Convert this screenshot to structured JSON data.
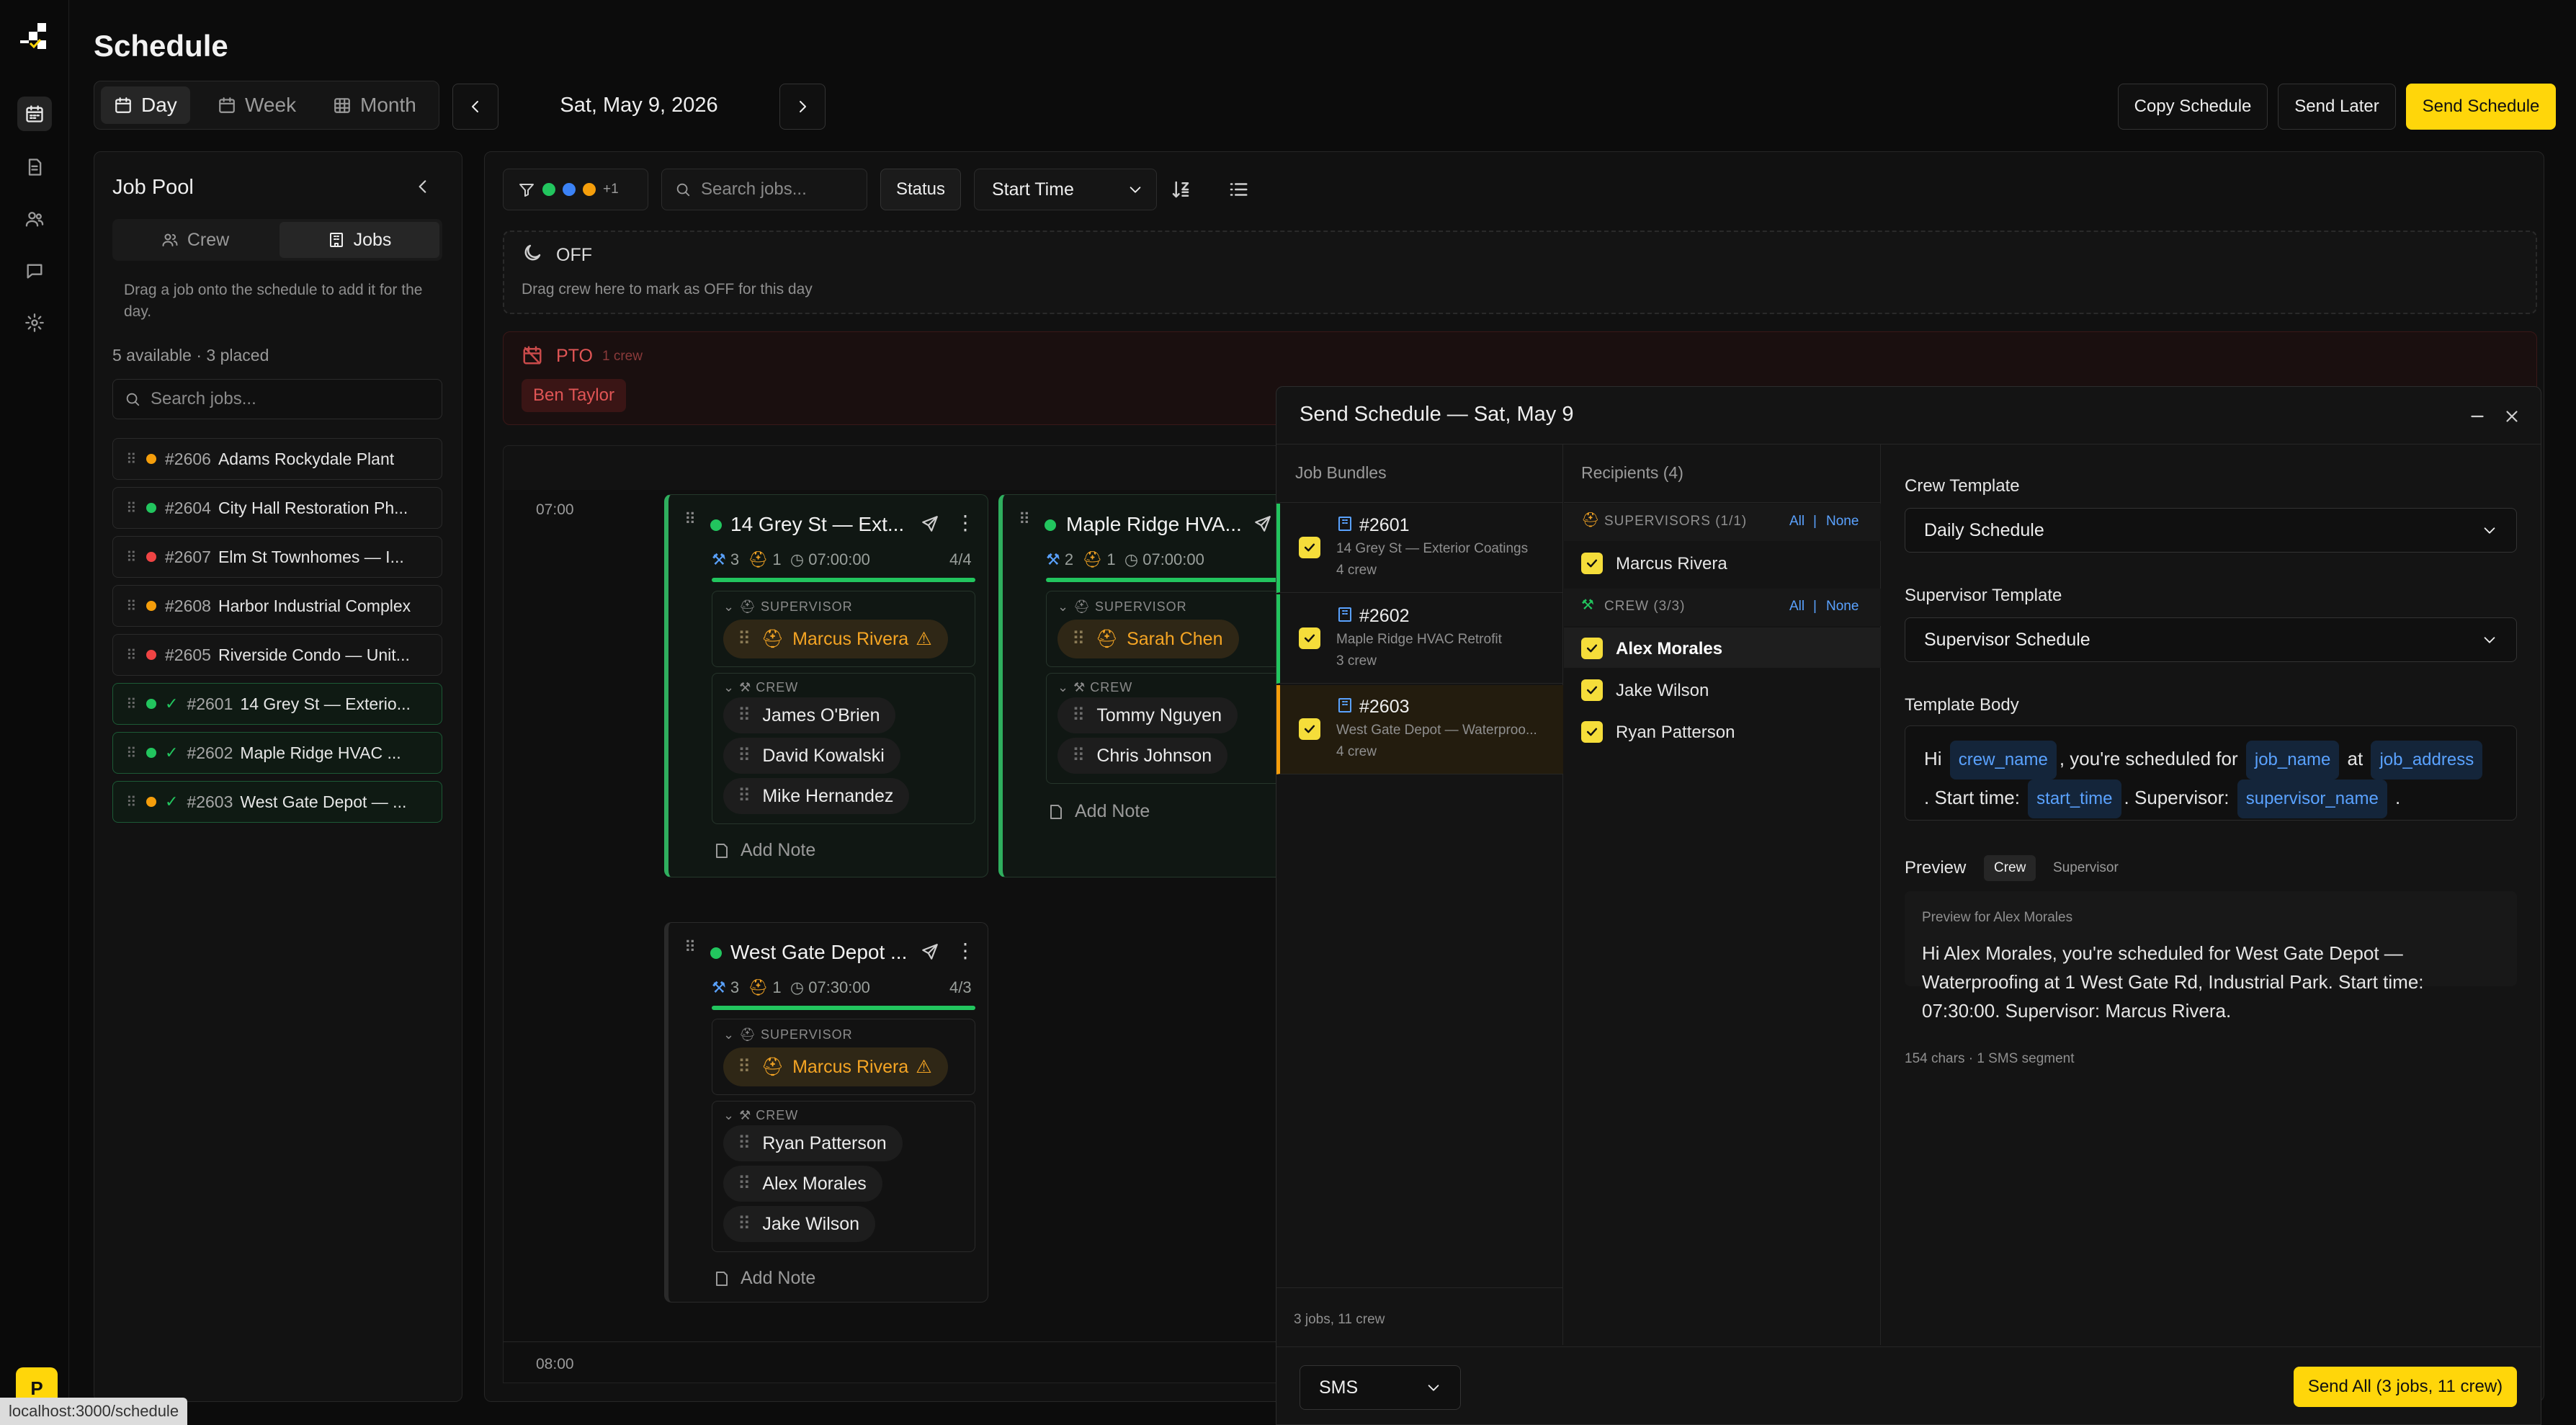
{
  "app": {
    "title": "Schedule",
    "brand_initial": "P",
    "url_hint": "localhost:3000/schedule"
  },
  "header": {
    "views": [
      {
        "label": "Day",
        "active": true
      },
      {
        "label": "Week"
      },
      {
        "label": "Month"
      }
    ],
    "date": "Sat, May 9, 2026",
    "copy_label": "Copy Schedule",
    "send_later_label": "Send Later",
    "send_label": "Send Schedule"
  },
  "job_pool": {
    "title": "Job Pool",
    "tabs": [
      {
        "label": "Crew"
      },
      {
        "label": "Jobs",
        "active": true
      }
    ],
    "hint": "Drag a job onto the schedule to add it for the day.",
    "summary": "5 available · 3 placed",
    "search_placeholder": "Search jobs...",
    "items": [
      {
        "num": "#2606",
        "name": "Adams Rockydale Plant",
        "color": "#f59e0b"
      },
      {
        "num": "#2604",
        "name": "City Hall Restoration Ph...",
        "color": "#22c55e"
      },
      {
        "num": "#2607",
        "name": "Elm St Townhomes — I...",
        "color": "#ef4444"
      },
      {
        "num": "#2608",
        "name": "Harbor Industrial Complex",
        "color": "#f59e0b"
      },
      {
        "num": "#2605",
        "name": "Riverside Condo — Unit...",
        "color": "#ef4444"
      },
      {
        "num": "#2601",
        "name": "14 Grey St — Exterio...",
        "color": "#22c55e",
        "placed": true
      },
      {
        "num": "#2602",
        "name": "Maple Ridge HVAC ...",
        "color": "#22c55e",
        "placed": true
      },
      {
        "num": "#2603",
        "name": "West Gate Depot — ...",
        "color": "#f59e0b",
        "placed": true
      }
    ]
  },
  "toolbar": {
    "filter_more": "+1",
    "search_placeholder": "Search jobs...",
    "status_label": "Status",
    "sort_label": "Start Time"
  },
  "off_row": {
    "label": "OFF",
    "hint": "Drag crew here to mark as OFF for this day"
  },
  "pto_row": {
    "label": "PTO",
    "count": "1 crew",
    "person": "Ben Taylor"
  },
  "timeline": {
    "times": [
      "07:00",
      "08:00"
    ]
  },
  "cards": [
    {
      "title": "14 Grey St — Ext...",
      "crew_count": "3",
      "sup_count": "1",
      "time": "07:00:00",
      "ratio": "4/4",
      "supervisor_heading": "SUPERVISOR",
      "supervisor": "Marcus Rivera",
      "crew_heading": "CREW",
      "crew": [
        "James O'Brien",
        "David Kowalski",
        "Mike Hernandez"
      ],
      "note": "Add Note"
    },
    {
      "title": "Maple Ridge HVA...",
      "crew_count": "2",
      "sup_count": "1",
      "time": "07:00:00",
      "supervisor_heading": "SUPERVISOR",
      "supervisor": "Sarah Chen",
      "crew_heading": "CREW",
      "crew": [
        "Tommy Nguyen",
        "Chris Johnson"
      ],
      "note": "Add Note"
    },
    {
      "title": "West Gate Depot ...",
      "crew_count": "3",
      "sup_count": "1",
      "time": "07:30:00",
      "ratio": "4/3",
      "supervisor_heading": "SUPERVISOR",
      "supervisor": "Marcus Rivera",
      "crew_heading": "CREW",
      "crew": [
        "Ryan Patterson",
        "Alex Morales",
        "Jake Wilson"
      ],
      "note": "Add Note"
    }
  ],
  "modal": {
    "title": "Send Schedule — Sat, May 9",
    "bundles_heading": "Job Bundles",
    "bundles": [
      {
        "num": "#2601",
        "name": "14 Grey St — Exterior Coatings",
        "crew": "4 crew"
      },
      {
        "num": "#2602",
        "name": "Maple Ridge HVAC Retrofit",
        "crew": "3 crew"
      },
      {
        "num": "#2603",
        "name": "West Gate Depot — Waterproo...",
        "crew": "4 crew"
      }
    ],
    "bundles_footer": "3 jobs, 11 crew",
    "recipients_heading": "Recipients (4)",
    "supervisors_heading": "SUPERVISORS (1/1)",
    "crew_heading": "CREW (3/3)",
    "all_label": "All",
    "none_label": "None",
    "supervisors": [
      "Marcus Rivera"
    ],
    "crew": [
      "Alex Morales",
      "Jake Wilson",
      "Ryan Patterson"
    ],
    "crew_template_label": "Crew Template",
    "crew_template_value": "Daily Schedule",
    "supervisor_template_label": "Supervisor Template",
    "supervisor_template_value": "Supervisor Schedule",
    "body_label": "Template Body",
    "body": {
      "hi": "Hi",
      "t1": ", you're scheduled for",
      "t2": "at",
      "t3": ". Start time:",
      "t4": ". Supervisor:",
      "t5": ".",
      "v_crew": "crew_name",
      "v_job": "job_name",
      "v_addr": "job_address",
      "v_start": "start_time",
      "v_sup": "supervisor_name"
    },
    "preview_label": "Preview",
    "preview_tabs": [
      "Crew",
      "Supervisor"
    ],
    "preview_for": "Preview for Alex Morales",
    "preview_text": "Hi Alex Morales, you're scheduled for West Gate Depot — Waterproofing at 1 West Gate Rd, Industrial Park. Start time: 07:30:00. Supervisor: Marcus Rivera.",
    "char_count": "154 chars · 1 SMS segment",
    "channel": "SMS",
    "send_all": "Send All (3 jobs, 11 crew)"
  },
  "colors": {
    "accent": "#ffd60a",
    "green": "#22c55e",
    "orange": "#f59e0b",
    "red": "#ef4444",
    "blue": "#3b82f6"
  }
}
